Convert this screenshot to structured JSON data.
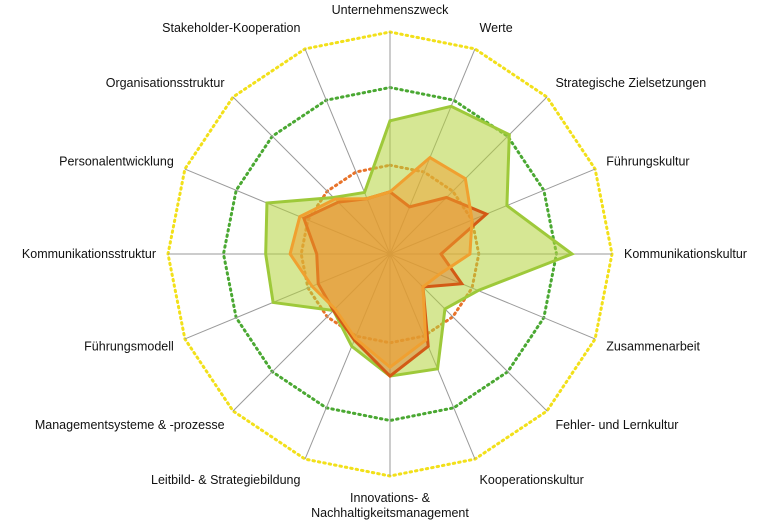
{
  "chart_data": {
    "type": "radar",
    "axes": [
      "Unternehmenszweck",
      "Werte",
      "Strategische Zielsetzungen",
      "Führungskultur",
      "Kommunikationskultur",
      "Zusammenarbeit",
      "Fehler- und Lernkultur",
      "Kooperationskultur",
      [
        "Innovations- &",
        "Nachhaltigkeitsmanagement"
      ],
      "Leitbild- & Strategiebildung",
      "Managementsysteme & -prozesse",
      "Führungsmodell",
      "Kommunikationsstruktur",
      "Personalentwicklung",
      "Organisationsstruktur",
      "Stakeholder-Kooperation"
    ],
    "rmax": 10,
    "reference_rings": [
      {
        "value": 4,
        "color": "#e8732a"
      },
      {
        "value": 7.5,
        "color": "#4aa832"
      },
      {
        "value": 10,
        "color": "#f2e01a"
      }
    ],
    "series": [
      {
        "values": [
          6.0,
          7.2,
          7.6,
          5.7,
          8.2,
          4.3,
          3.5,
          5.6,
          5.5,
          4.5,
          3.6,
          5.7,
          5.6,
          6.0,
          3.6,
          3.0
        ],
        "fill": "#b5d33c",
        "fill_opacity": 0.55,
        "stroke": "#9ec93a"
      },
      {
        "values": [
          2.8,
          2.3,
          3.6,
          4.7,
          2.3,
          3.5,
          2.1,
          4.5,
          5.5,
          4.2,
          3.6,
          3.5,
          3.3,
          4.2,
          3.3,
          2.7
        ],
        "fill": "#e0702a",
        "fill_opacity": 0.45,
        "stroke": "#d35a15"
      },
      {
        "values": [
          2.8,
          4.7,
          4.8,
          4.0,
          3.6,
          2.4,
          2.1,
          4.2,
          5.1,
          4.1,
          3.5,
          3.8,
          4.5,
          4.4,
          3.5,
          2.7
        ],
        "fill": "#f0a030",
        "fill_opacity": 0.5,
        "stroke": "#f0a030"
      }
    ]
  }
}
